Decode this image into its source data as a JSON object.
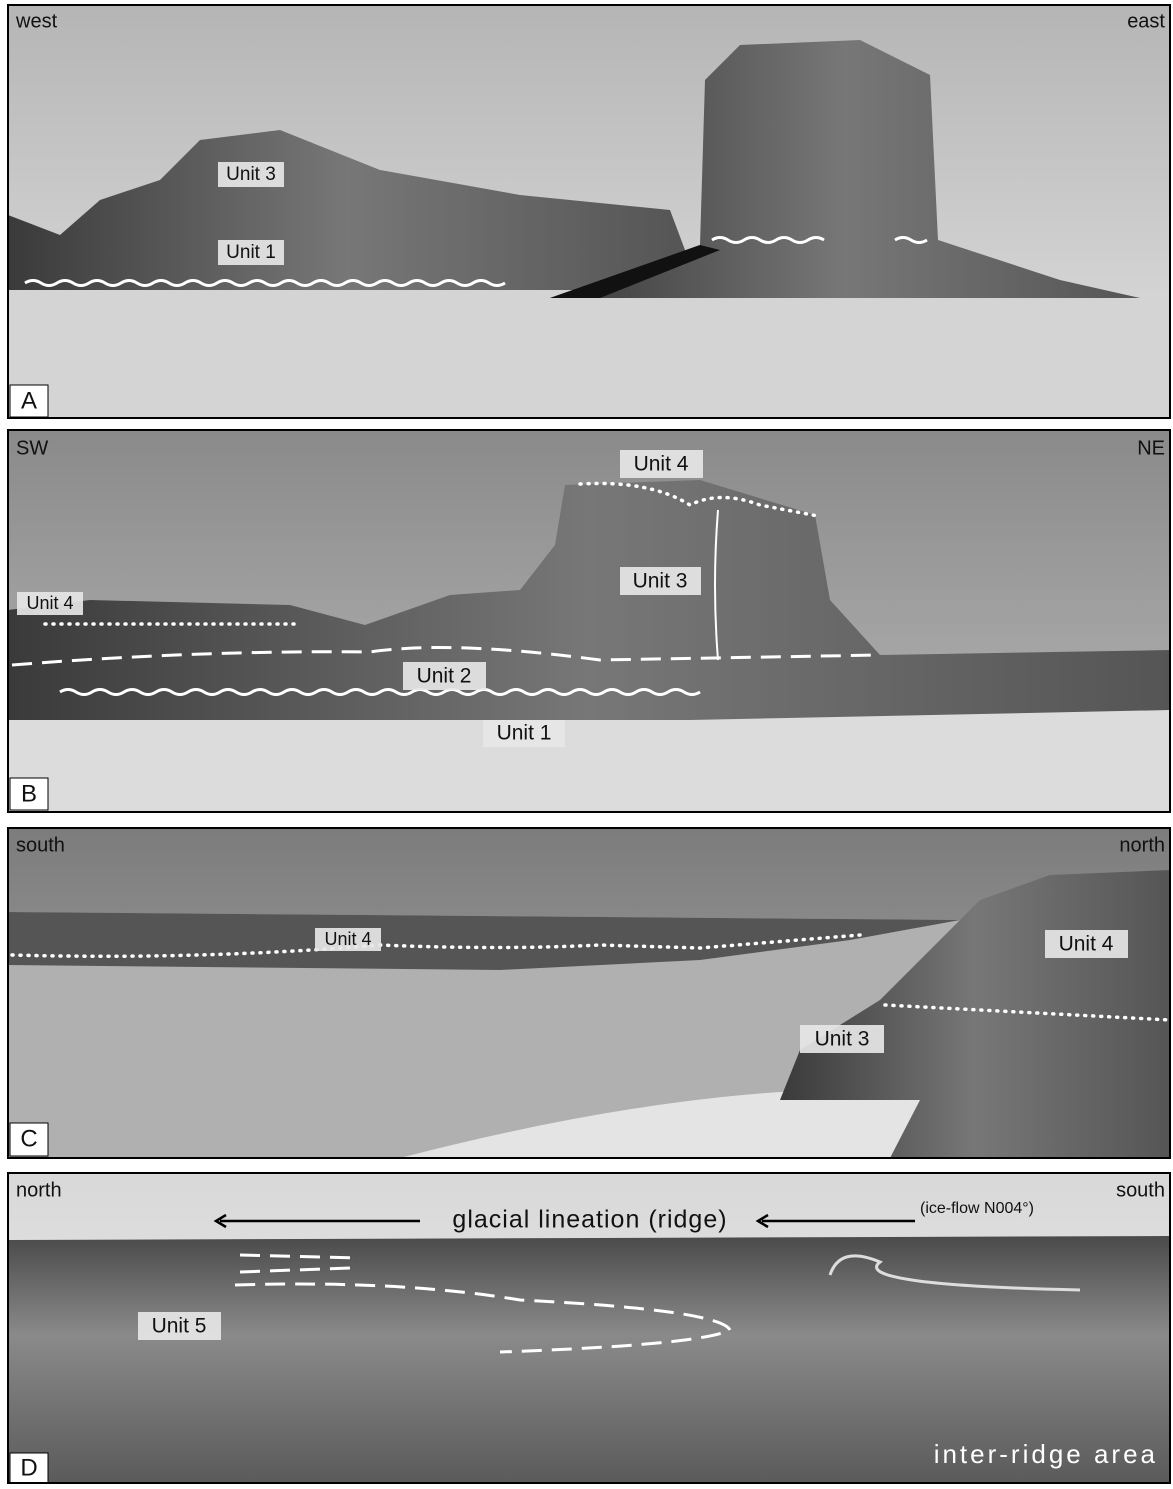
{
  "panels": [
    {
      "letter": "A",
      "left": "west",
      "right": "east",
      "labels": [
        "Unit 3",
        "Unit 1"
      ]
    },
    {
      "letter": "B",
      "left": "SW",
      "right": "NE",
      "labels": [
        "Unit 4",
        "Unit 3",
        "Unit 4",
        "Unit 2",
        "Unit 1"
      ]
    },
    {
      "letter": "C",
      "left": "south",
      "right": "north",
      "labels": [
        "Unit 4",
        "Unit 4",
        "Unit 3"
      ]
    },
    {
      "letter": "D",
      "left": "north",
      "right": "south",
      "labels": [
        "Unit 5"
      ],
      "arrow_text": "glacial lineation (ridge)",
      "ice_flow": "(ice-flow N004°)",
      "area": "inter-ridge area"
    }
  ]
}
